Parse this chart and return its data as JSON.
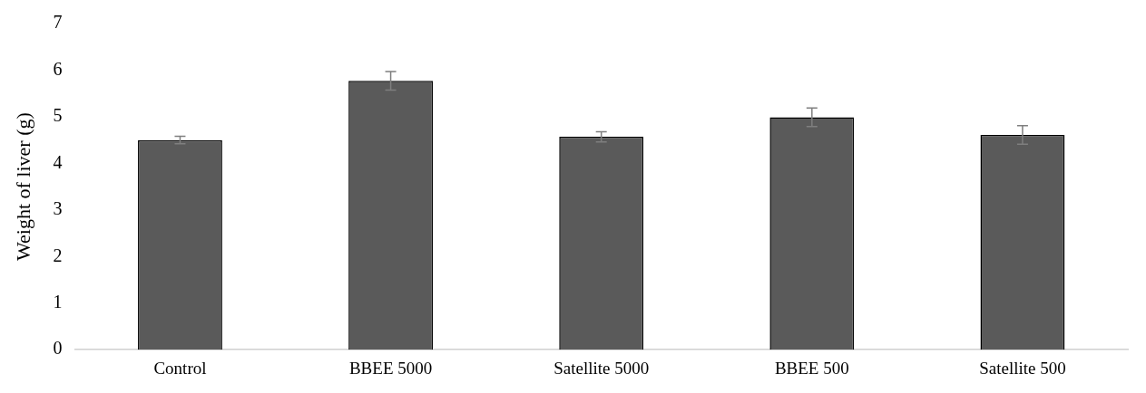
{
  "chart_data": {
    "type": "bar",
    "ylabel": "Weight of liver (g)",
    "categories": [
      "Control",
      "BBEE 5000",
      "Satellite 5000",
      "BBEE 500",
      "Satellite 500"
    ],
    "values": [
      4.5,
      5.77,
      4.57,
      4.99,
      4.61
    ],
    "errors": [
      0.08,
      0.2,
      0.11,
      0.2,
      0.2
    ],
    "color": "#5a5a5a",
    "ylim": [
      0,
      7
    ],
    "yticks": [
      0,
      1,
      2,
      3,
      4,
      5,
      6,
      7
    ],
    "grid": false,
    "legend": false
  }
}
